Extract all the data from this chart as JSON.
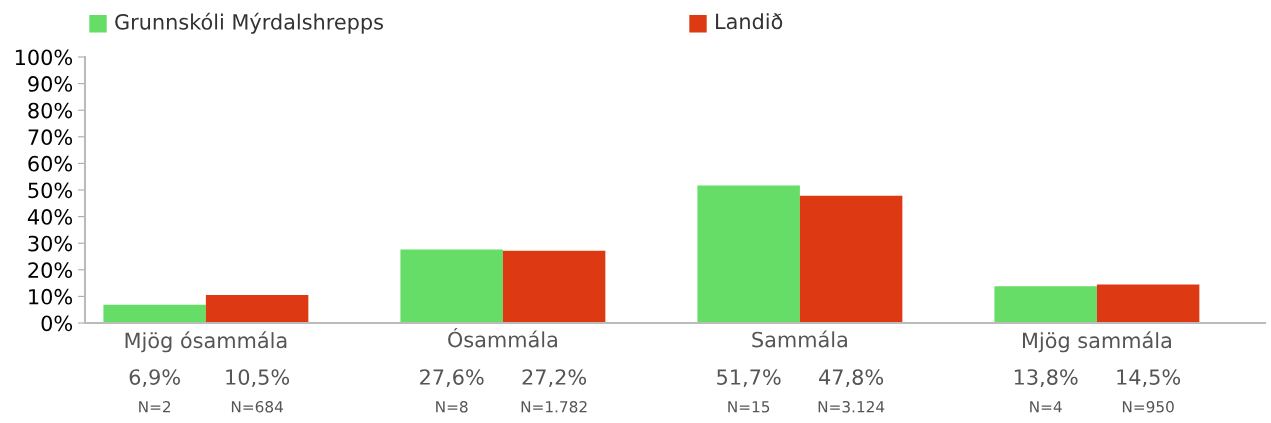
{
  "chart_data": {
    "type": "bar",
    "categories": [
      "Mjög ósammála",
      "Ósammála",
      "Sammála",
      "Mjög sammála"
    ],
    "series": [
      {
        "name": "Grunnskóli Mýrdalshrepps",
        "color": "#66dd66",
        "values": [
          6.9,
          27.6,
          51.7,
          13.8
        ],
        "value_labels": [
          "6,9%",
          "27,6%",
          "51,7%",
          "13,8%"
        ]
      },
      {
        "name": "Landið",
        "color": "#dd3a14",
        "values": [
          10.5,
          27.2,
          47.8,
          14.5
        ],
        "value_labels": [
          "10,5%",
          "27,2%",
          "47,8%",
          "14,5%"
        ]
      }
    ],
    "annotations": [
      "N=2",
      "N=684",
      "N=8",
      "N=1.782",
      "N=15",
      "N=3.124",
      "N=4",
      "N=950"
    ],
    "ylim": [
      0,
      100
    ],
    "yticks": [
      {
        "value": 0,
        "label": "0%"
      },
      {
        "value": 10,
        "label": "10%"
      },
      {
        "value": 20,
        "label": "20%"
      },
      {
        "value": 30,
        "label": "30%"
      },
      {
        "value": 40,
        "label": "40%"
      },
      {
        "value": 50,
        "label": "50%"
      },
      {
        "value": 60,
        "label": "60%"
      },
      {
        "value": 70,
        "label": "70%"
      },
      {
        "value": 80,
        "label": "80%"
      },
      {
        "value": 90,
        "label": "90%"
      },
      {
        "value": 100,
        "label": "100%"
      }
    ],
    "grid": false,
    "legend": "top"
  }
}
